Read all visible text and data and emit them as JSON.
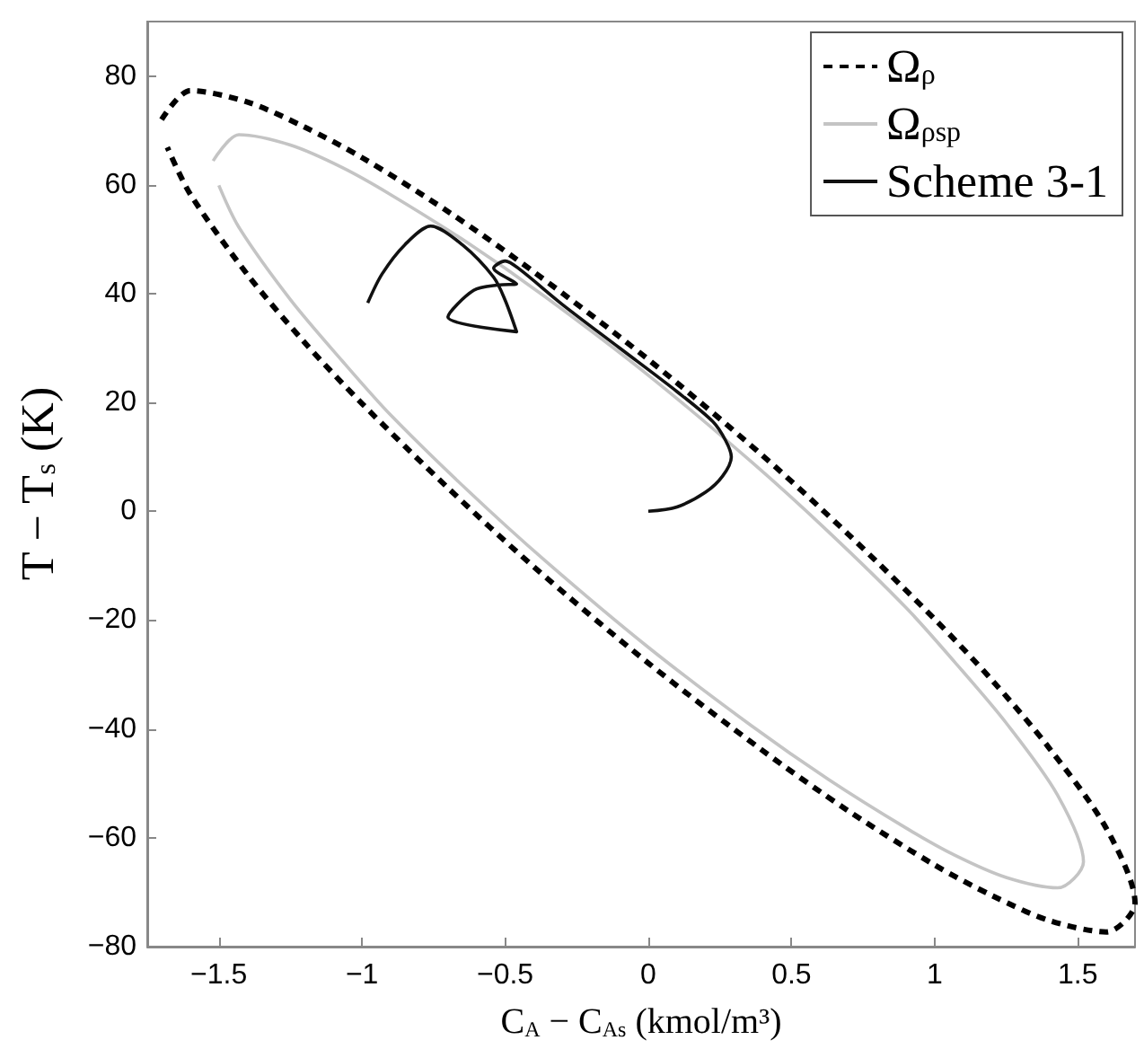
{
  "chart_data": {
    "type": "line",
    "xlabel": "C$_{A}$ − C$_{As}$ (kmol/m³)",
    "ylabel": "T − T$_{s}$ (K)",
    "xlim": [
      -1.75,
      1.7
    ],
    "xticks": [
      -1.5,
      -1,
      -0.5,
      0,
      0.5,
      1,
      1.5
    ],
    "ylim": [
      -80,
      90
    ],
    "yticks": [
      -80,
      -60,
      -40,
      -20,
      0,
      20,
      40,
      60,
      80
    ],
    "grid": false,
    "legend": "top right",
    "marker": "none",
    "series": [
      {
        "name": "Ω$_{ρ}$",
        "color": "#000000",
        "line_style": "dashed",
        "x": [
          -1.7,
          -1.6,
          -1.4,
          -1.2,
          -1.0,
          -0.7,
          -0.4,
          0,
          0.4,
          0.7,
          1.0,
          1.2,
          1.4,
          1.6,
          1.7,
          1.6,
          1.4,
          1.2,
          1.0,
          0.7,
          0.4,
          0,
          -0.4,
          -0.7,
          -1.0,
          -1.2,
          -1.4,
          -1.6,
          -1.68
        ],
        "values": [
          72.0,
          77.3,
          75.2,
          70.6,
          65.0,
          55.1,
          44.0,
          27.9,
          10.2,
          -4.3,
          -19.8,
          -31.0,
          -43.5,
          -58.3,
          -72.0,
          -77.3,
          -75.2,
          -70.6,
          -65.0,
          -55.1,
          -44.0,
          -27.9,
          -10.2,
          4.3,
          19.8,
          31.0,
          43.5,
          58.3,
          66.9
        ]
      },
      {
        "name": "Ω$_{ρsp}$",
        "color": "#c4c4c4",
        "line_style": "solid",
        "x": [
          -1.52,
          -1.43,
          -1.25,
          -1.07,
          -0.9,
          -0.63,
          -0.36,
          0,
          0.36,
          0.63,
          0.9,
          1.07,
          1.25,
          1.43,
          1.52,
          1.43,
          1.25,
          1.07,
          0.9,
          0.63,
          0.36,
          0,
          -0.36,
          -0.63,
          -0.9,
          -1.07,
          -1.25,
          -1.43,
          -1.5
        ],
        "values": [
          64.4,
          69.2,
          67.3,
          63.2,
          58.2,
          49.3,
          39.4,
          25.0,
          9.1,
          -3.8,
          -17.7,
          -27.7,
          -38.9,
          -52.2,
          -64.4,
          -69.2,
          -67.3,
          -63.2,
          -58.2,
          -49.3,
          -39.4,
          -25.0,
          -9.1,
          3.8,
          17.7,
          27.7,
          38.9,
          52.2,
          59.9
        ]
      },
      {
        "name": "Scheme 3-1",
        "color": "#111111",
        "line_style": "solid",
        "x": [
          0,
          0.1,
          0.2,
          0.26,
          0.29,
          0.27,
          0.225,
          0.1,
          -0.1,
          -0.3,
          -0.45,
          -0.5,
          -0.54,
          -0.46,
          -0.52,
          -0.61,
          -0.7,
          -0.46,
          -0.5,
          -0.54,
          -0.65,
          -0.76,
          -0.85,
          -0.93,
          -0.98
        ],
        "values": [
          0,
          0.8,
          3.5,
          6.5,
          10,
          13,
          16.5,
          22,
          30,
          38,
          44.5,
          46,
          44.7,
          41.8,
          41.6,
          40.6,
          35.7,
          33,
          38.8,
          43,
          49,
          52.4,
          49,
          43.6,
          38.3
        ]
      }
    ]
  }
}
